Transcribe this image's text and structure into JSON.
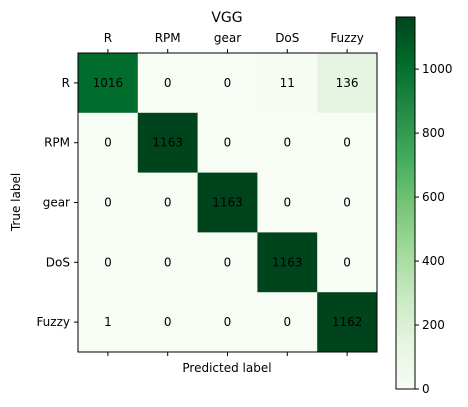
{
  "chart_data": {
    "type": "heatmap",
    "title": "VGG",
    "xlabel": "Predicted label",
    "ylabel": "True label",
    "x_categories": [
      "R",
      "RPM",
      "gear",
      "DoS",
      "Fuzzy"
    ],
    "y_categories": [
      "R",
      "RPM",
      "gear",
      "DoS",
      "Fuzzy"
    ],
    "values": [
      [
        1016,
        0,
        0,
        11,
        136
      ],
      [
        0,
        1163,
        0,
        0,
        0
      ],
      [
        0,
        0,
        1163,
        0,
        0
      ],
      [
        0,
        0,
        0,
        1163,
        0
      ],
      [
        1,
        0,
        0,
        0,
        1162
      ]
    ],
    "colormap": "Greens",
    "color_range": [
      0,
      1163
    ],
    "colorbar_ticks": [
      0,
      200,
      400,
      600,
      800,
      1000
    ],
    "x_axis_position": "top",
    "grid": false,
    "colors": {
      "low": "#f7fcf5",
      "high": "#00441b"
    }
  }
}
